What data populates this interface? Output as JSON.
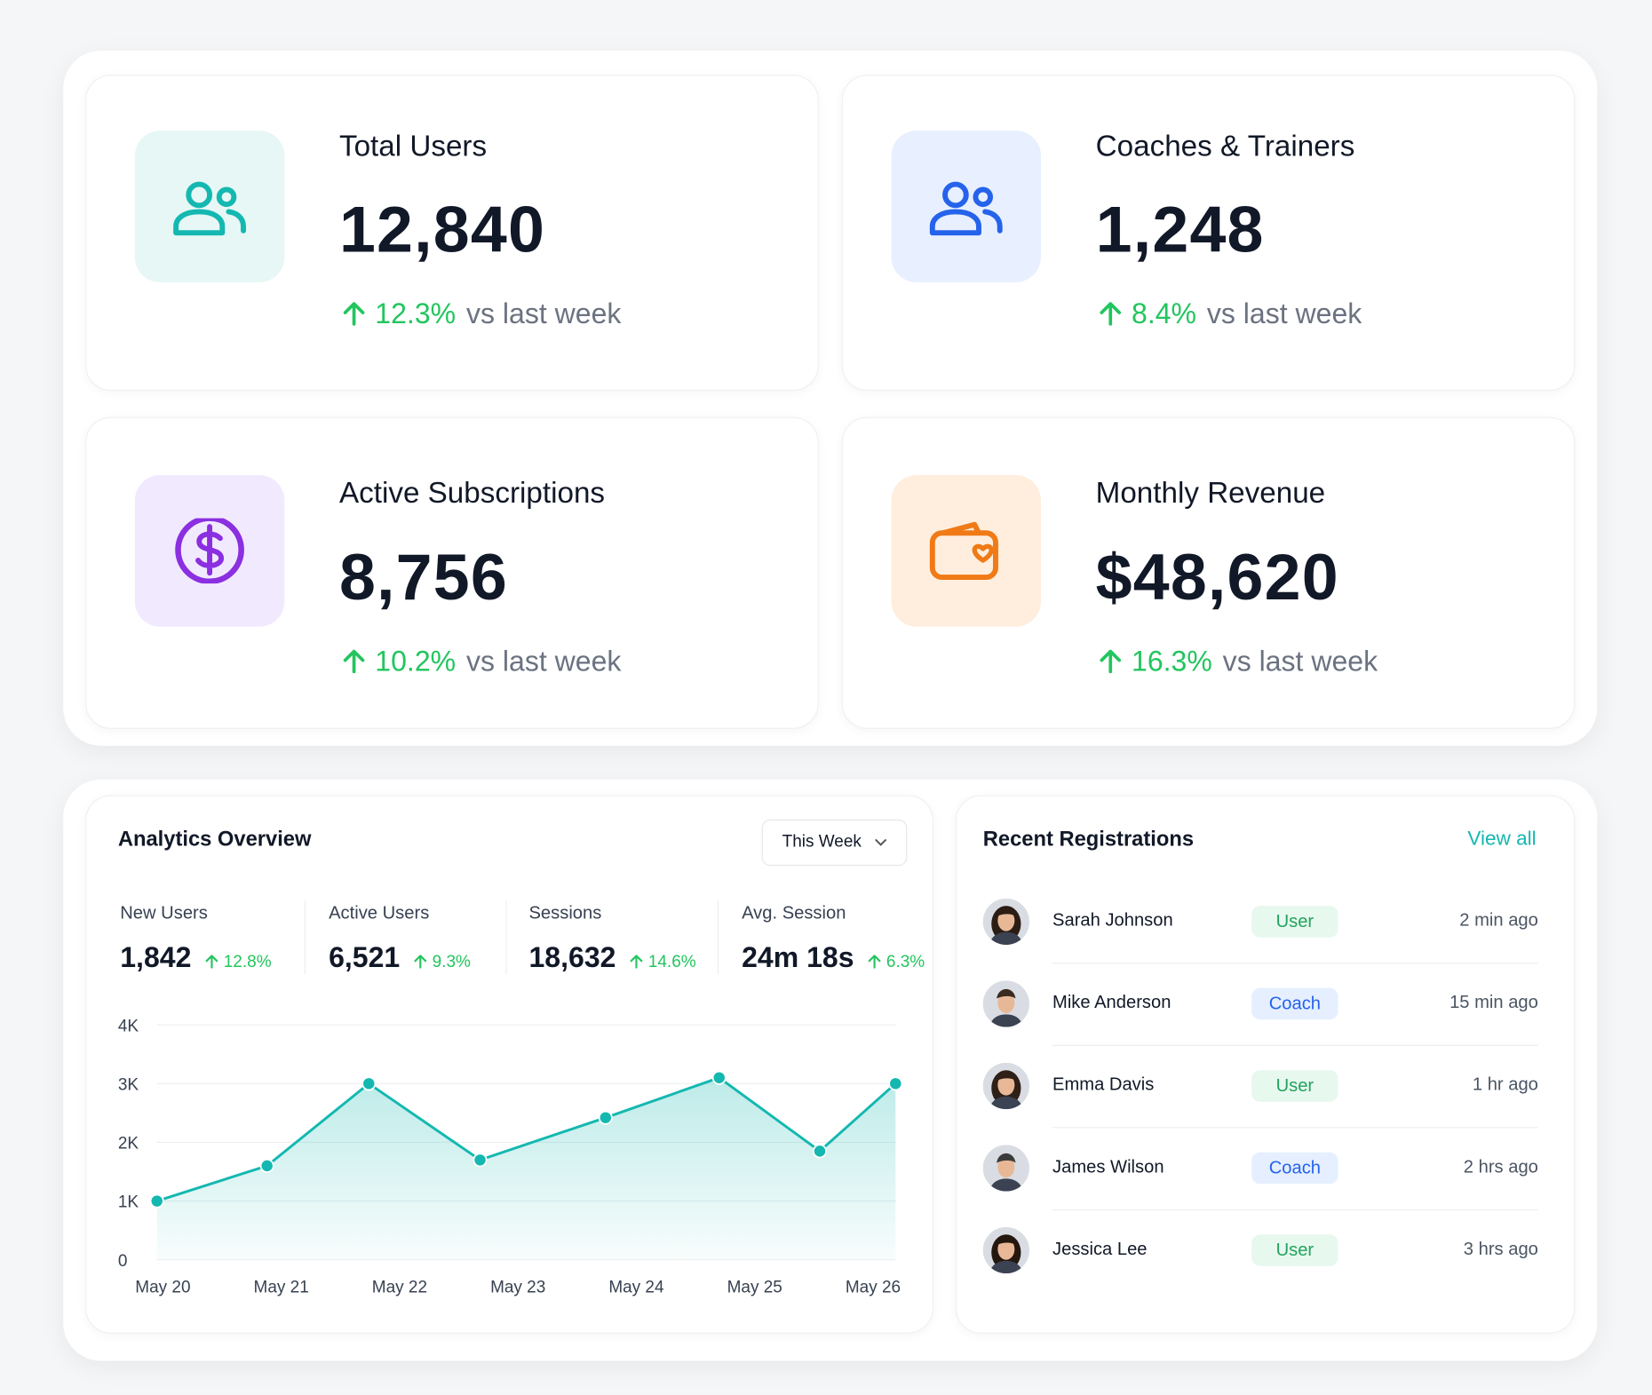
{
  "stats": [
    {
      "title": "Total Users",
      "value": "12,840",
      "change": "12.3%",
      "comparison": "vs last week"
    },
    {
      "title": "Coaches & Trainers",
      "value": "1,248",
      "change": "8.4%",
      "comparison": "vs last week"
    },
    {
      "title": "Active Subscriptions",
      "value": "8,756",
      "change": "10.2%",
      "comparison": "vs last week"
    },
    {
      "title": "Monthly Revenue",
      "value": "$48,620",
      "change": "16.3%",
      "comparison": "vs last week"
    }
  ],
  "analytics": {
    "title": "Analytics Overview",
    "period": "This Week",
    "metrics": [
      {
        "label": "New Users",
        "value": "1,842",
        "change": "12.8%"
      },
      {
        "label": "Active Users",
        "value": "6,521",
        "change": "9.3%"
      },
      {
        "label": "Sessions",
        "value": "18,632",
        "change": "14.6%"
      },
      {
        "label": "Avg. Session",
        "value": "24m 18s",
        "change": "6.3%"
      }
    ]
  },
  "chart_data": {
    "type": "area",
    "color": "#14b8b0",
    "x": [
      -0.05,
      0.88,
      1.74,
      2.68,
      3.74,
      4.7,
      5.55,
      6.19
    ],
    "values": [
      1000,
      1600,
      3000,
      1700,
      2420,
      3100,
      1850,
      3000
    ],
    "xlim": [
      -0.05,
      6.19
    ],
    "xticks": [
      {
        "value": 0,
        "label": "May 20"
      },
      {
        "value": 1,
        "label": "May 21"
      },
      {
        "value": 2,
        "label": "May 22"
      },
      {
        "value": 3,
        "label": "May 23"
      },
      {
        "value": 4,
        "label": "May 24"
      },
      {
        "value": 5,
        "label": "May 25"
      },
      {
        "value": 6,
        "label": "May 26"
      }
    ],
    "ylim": [
      0,
      4000
    ],
    "yticks": [
      0,
      {
        "value": 1000,
        "label": "1K"
      },
      {
        "value": 2000,
        "label": "2K"
      },
      {
        "value": 3000,
        "label": "3K"
      },
      {
        "value": 4000,
        "label": "4K"
      }
    ],
    "grid": true
  },
  "registrations": {
    "title": "Recent Registrations",
    "view_all": "View all",
    "rows": [
      {
        "name": "Sarah Johnson",
        "role": "User",
        "time": "2 min ago"
      },
      {
        "name": "Mike Anderson",
        "role": "Coach",
        "time": "15 min ago"
      },
      {
        "name": "Emma Davis",
        "role": "User",
        "time": "1 hr ago"
      },
      {
        "name": "James Wilson",
        "role": "Coach",
        "time": "2 hrs ago"
      },
      {
        "name": "Jessica Lee",
        "role": "User",
        "time": "3 hrs ago"
      }
    ]
  }
}
